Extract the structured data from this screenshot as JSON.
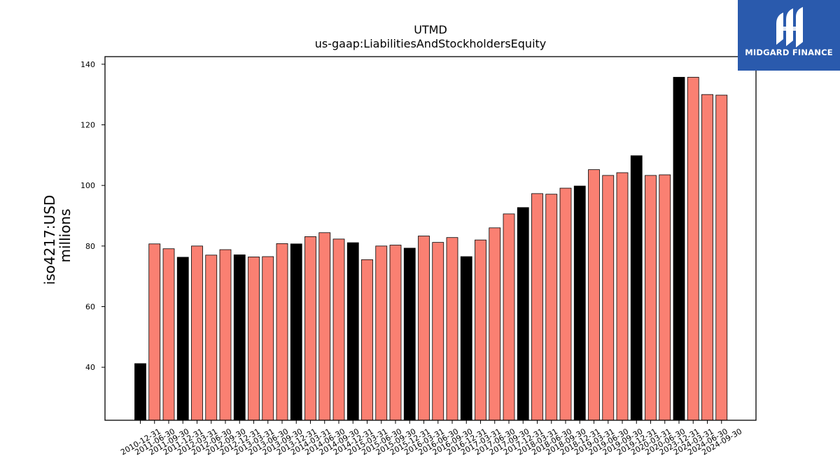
{
  "brand": {
    "name": "MIDGARD FINANCE",
    "color": "#2a5aad",
    "icon": "midgard-logo-icon"
  },
  "chart_data": {
    "type": "bar",
    "title": "UTMD",
    "subtitle": "us-gaap:LiabilitiesAndStockholdersEquity",
    "ylabel": "iso4217:USD",
    "ylabel2": "millions",
    "xlabel": "",
    "ylim": [
      22.5,
      142.5
    ],
    "yticks": [
      40,
      60,
      80,
      100,
      120,
      140
    ],
    "grid": false,
    "colors": {
      "annual": "#000000",
      "quarterly": "#fa8072"
    },
    "categories": [
      "2010-12-31",
      "2011-06-30",
      "2011-09-30",
      "2011-12-31",
      "2012-03-31",
      "2012-06-30",
      "2012-09-30",
      "2012-12-31",
      "2013-03-31",
      "2013-06-30",
      "2013-09-30",
      "2013-12-31",
      "2014-03-31",
      "2014-06-30",
      "2014-09-30",
      "2014-12-31",
      "2015-03-31",
      "2015-06-30",
      "2015-09-30",
      "2015-12-31",
      "2016-03-31",
      "2016-06-30",
      "2016-09-30",
      "2016-12-31",
      "2017-03-31",
      "2017-06-30",
      "2017-09-30",
      "2017-12-31",
      "2018-03-31",
      "2018-06-30",
      "2018-09-30",
      "2018-12-31",
      "2019-03-31",
      "2019-06-30",
      "2019-09-30",
      "2019-12-31",
      "2020-03-31",
      "2020-06-30",
      "2023-12-31",
      "2024-03-31",
      "2024-06-30",
      "2024-09-30"
    ],
    "values": [
      41.2,
      80.7,
      79.1,
      76.3,
      80.0,
      77.0,
      78.8,
      77.1,
      76.4,
      76.5,
      80.8,
      80.7,
      83.1,
      84.4,
      82.3,
      81.1,
      75.5,
      80.0,
      80.3,
      79.3,
      83.3,
      81.2,
      82.8,
      76.5,
      82.0,
      86.0,
      90.6,
      92.7,
      97.3,
      97.1,
      99.1,
      99.8,
      105.2,
      103.3,
      104.2,
      109.8,
      103.3,
      103.5,
      135.7,
      135.7,
      130.0,
      129.8
    ],
    "kinds": [
      "annual",
      "quarterly",
      "quarterly",
      "annual",
      "quarterly",
      "quarterly",
      "quarterly",
      "annual",
      "quarterly",
      "quarterly",
      "quarterly",
      "annual",
      "quarterly",
      "quarterly",
      "quarterly",
      "annual",
      "quarterly",
      "quarterly",
      "quarterly",
      "annual",
      "quarterly",
      "quarterly",
      "quarterly",
      "annual",
      "quarterly",
      "quarterly",
      "quarterly",
      "annual",
      "quarterly",
      "quarterly",
      "quarterly",
      "annual",
      "quarterly",
      "quarterly",
      "quarterly",
      "annual",
      "quarterly",
      "quarterly",
      "annual",
      "quarterly",
      "quarterly",
      "quarterly"
    ]
  }
}
